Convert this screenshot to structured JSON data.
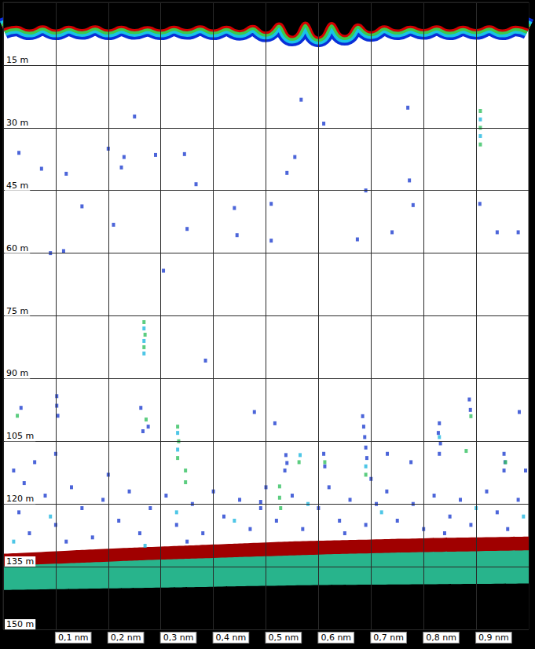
{
  "chart_data": {
    "type": "scatter",
    "xlim": [
      0,
      1
    ],
    "xticks": [
      {
        "value": 0.1,
        "label": "0,1 nm"
      },
      {
        "value": 0.2,
        "label": "0,2 nm"
      },
      {
        "value": 0.3,
        "label": "0,3 nm"
      },
      {
        "value": 0.4,
        "label": "0,4 nm"
      },
      {
        "value": 0.5,
        "label": "0,5 nm"
      },
      {
        "value": 0.6,
        "label": "0,6 nm"
      },
      {
        "value": 0.7,
        "label": "0,7 nm"
      },
      {
        "value": 0.8,
        "label": "0,8 nm"
      },
      {
        "value": 0.9,
        "label": "0,9 nm"
      }
    ],
    "ylim": [
      0,
      150
    ],
    "yticks": [
      {
        "value": 15,
        "label": "15 m"
      },
      {
        "value": 30,
        "label": "30 m"
      },
      {
        "value": 45,
        "label": "45 m"
      },
      {
        "value": 60,
        "label": "60 m"
      },
      {
        "value": 75,
        "label": "75 m"
      },
      {
        "value": 90,
        "label": "90 m"
      },
      {
        "value": 105,
        "label": "105 m"
      },
      {
        "value": 120,
        "label": "120 m"
      },
      {
        "value": 135,
        "label": "135 m"
      },
      {
        "value": 150,
        "label": "150 m"
      }
    ],
    "grid": true,
    "series": [
      {
        "type": "surface",
        "color": "#000000",
        "colors": [
          "#0a2fd8",
          "#19c3e6",
          "#3cc84a",
          "#d40000"
        ],
        "x": [
          0,
          0.025,
          0.05,
          0.075,
          0.1,
          0.125,
          0.15,
          0.175,
          0.2,
          0.225,
          0.25,
          0.275,
          0.3,
          0.325,
          0.35,
          0.375,
          0.4,
          0.425,
          0.45,
          0.475,
          0.5,
          0.525,
          0.55,
          0.575,
          0.6,
          0.625,
          0.65,
          0.675,
          0.7,
          0.725,
          0.75,
          0.775,
          0.8,
          0.825,
          0.85,
          0.875,
          0.9,
          0.925,
          0.95,
          0.975,
          1
        ],
        "values": [
          6.3,
          5.6,
          6.5,
          5.5,
          6.5,
          5.6,
          6.4,
          5.5,
          6.5,
          5.6,
          6.4,
          5.7,
          6.5,
          5.6,
          6.4,
          5.5,
          6.5,
          5.6,
          6.6,
          5.4,
          7.0,
          4.8,
          8.0,
          4.6,
          8.2,
          4.7,
          7.8,
          5.0,
          6.9,
          5.5,
          6.5,
          5.6,
          6.4,
          5.5,
          6.5,
          5.6,
          6.4,
          5.5,
          6.5,
          5.6,
          6.4
        ]
      },
      {
        "type": "area",
        "color": "#a00000",
        "x": [
          0,
          0.1,
          0.2,
          0.3,
          0.4,
          0.5,
          0.6,
          0.7,
          0.8,
          0.9,
          1
        ],
        "values": [
          131.9,
          131.3,
          130.7,
          130.2,
          129.7,
          129.2,
          128.8,
          128.5,
          128.2,
          128.0,
          127.8
        ]
      },
      {
        "type": "area",
        "color": "#28b48c",
        "x": [
          0,
          0.1,
          0.2,
          0.3,
          0.4,
          0.5,
          0.6,
          0.7,
          0.8,
          0.9,
          1
        ],
        "values": [
          134.9,
          134.3,
          133.8,
          133.3,
          132.9,
          132.5,
          132.1,
          131.8,
          131.5,
          131.3,
          131.1
        ]
      },
      {
        "type": "area",
        "color": "#000000",
        "x": [
          0,
          0.1,
          0.2,
          0.3,
          0.4,
          0.5,
          0.6,
          0.7,
          0.8,
          0.9,
          1
        ],
        "values": [
          140.6,
          140.4,
          140.2,
          140.0,
          139.8,
          139.6,
          139.4,
          139.3,
          139.2,
          139.1,
          139.0
        ]
      },
      {
        "type": "scatter",
        "color": "#1f3fd0",
        "marker": "square",
        "x": [
          0.25,
          0.15,
          0.21,
          0.23,
          0.225,
          0.29,
          0.345,
          0.305,
          0.367,
          0.44,
          0.445,
          0.51,
          0.54,
          0.555,
          0.567,
          0.61,
          0.674,
          0.77,
          0.773,
          0.74,
          0.78,
          0.907,
          0.94,
          0.98,
          0.35,
          0.2,
          0.073,
          0.12,
          0.115,
          0.03,
          0.09,
          0.51,
          0.69,
          0.385,
          0.102,
          0.102,
          0.104,
          0.262,
          0.276,
          0.266,
          0.517,
          0.538,
          0.54,
          0.536,
          0.61,
          0.612,
          0.684,
          0.686,
          0.688,
          0.69,
          0.692,
          0.731,
          0.776,
          0.83,
          0.828,
          0.832,
          0.83,
          0.887,
          0.889,
          0.953,
          0.955,
          0.953,
          0.982,
          0.994,
          0.478,
          0.49,
          0.02,
          0.06,
          0.1,
          0.034,
          0.03,
          0.05,
          0.08,
          0.1,
          0.13,
          0.15,
          0.17,
          0.19,
          0.22,
          0.24,
          0.26,
          0.28,
          0.31,
          0.33,
          0.36,
          0.38,
          0.4,
          0.42,
          0.45,
          0.47,
          0.49,
          0.52,
          0.55,
          0.57,
          0.6,
          0.62,
          0.64,
          0.66,
          0.69,
          0.71,
          0.73,
          0.75,
          0.78,
          0.8,
          0.82,
          0.85,
          0.87,
          0.89,
          0.92,
          0.94,
          0.96,
          0.98,
          0.04,
          0.12,
          0.2,
          0.35,
          0.5,
          0.65,
          0.7,
          0.84
        ],
        "values": [
          27.3,
          48.8,
          53.2,
          37.0,
          39.5,
          36.5,
          36.3,
          64.2,
          43.5,
          49.2,
          55.7,
          48.2,
          40.8,
          37.0,
          23.3,
          29.0,
          56.7,
          25.2,
          42.6,
          55.0,
          48.5,
          48.2,
          55.0,
          55.0,
          54.2,
          35.0,
          39.8,
          41.0,
          59.5,
          36.0,
          60.0,
          57.0,
          45.0,
          85.7,
          94.2,
          96.5,
          98.9,
          97.0,
          101.5,
          102.6,
          100.7,
          108.3,
          110.2,
          112.0,
          108.0,
          111.0,
          99.0,
          101.5,
          104.0,
          106.5,
          109.0,
          108.0,
          110.0,
          100.7,
          103.0,
          105.5,
          108.0,
          95.0,
          97.5,
          108.0,
          110.0,
          112.0,
          98.0,
          112.0,
          98.0,
          119.5,
          112.0,
          110.0,
          108.0,
          97.0,
          122,
          127,
          118,
          125,
          116,
          121,
          128,
          119,
          124,
          117,
          127,
          121,
          118,
          125,
          120,
          127,
          117,
          123,
          119,
          126,
          121,
          124,
          118,
          126,
          121,
          116,
          124,
          119,
          125,
          120,
          117,
          124,
          120,
          126,
          118,
          123,
          119,
          125,
          117,
          122,
          126,
          119,
          115,
          129,
          113,
          129,
          116,
          127,
          114,
          127
        ]
      },
      {
        "type": "scatter",
        "color": "#22b8e0",
        "marker": "square",
        "x": [
          0.908,
          0.908,
          0.268,
          0.268,
          0.268,
          0.332,
          0.332,
          0.565,
          0.69,
          0.02,
          0.09,
          0.27,
          0.44,
          0.58,
          0.72,
          0.9,
          0.99,
          0.33,
          0.83
        ],
        "values": [
          28,
          32,
          78,
          81,
          84,
          103,
          107,
          108.3,
          111,
          129,
          123,
          130,
          124,
          120,
          122,
          121,
          123,
          122,
          104
        ]
      },
      {
        "type": "scatter",
        "color": "#33c060",
        "marker": "square",
        "x": [
          0.908,
          0.908,
          0.908,
          0.268,
          0.27,
          0.268,
          0.027,
          0.272,
          0.332,
          0.334,
          0.332,
          0.347,
          0.347,
          0.526,
          0.526,
          0.528,
          0.563,
          0.612,
          0.69,
          0.881,
          0.89,
          0.956
        ],
        "values": [
          26,
          30,
          34,
          76.5,
          79.5,
          82.5,
          98.9,
          99.8,
          101.5,
          105,
          109,
          112,
          114.8,
          115.8,
          118.5,
          121.0,
          110,
          110,
          113,
          107.3,
          99,
          110
        ]
      }
    ]
  }
}
